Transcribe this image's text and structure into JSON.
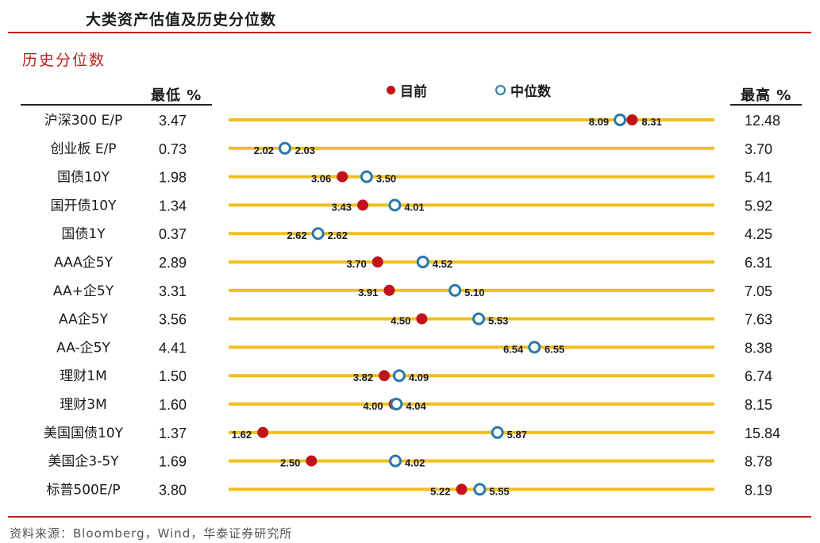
{
  "page": {
    "title": "大类资产估值及历史分位数",
    "section_title": "历史分位数",
    "source": "资料来源：Bloomberg，Wind，华泰证券研究所"
  },
  "colors": {
    "accent_red": "#c0201c",
    "bar": "#f2bf1c",
    "current_dot": "#c0141a",
    "median_ring": "#2a79a8"
  },
  "chart_data": {
    "type": "dot-range",
    "col_low_header": "最低 %",
    "col_high_header": "最高 %",
    "legend": {
      "current": "目前",
      "median": "中位数"
    },
    "rows": [
      {
        "label": "沪深300 E/P",
        "low": "3.47",
        "high": "12.48",
        "current": 8.31,
        "median": 8.09
      },
      {
        "label": "创业板 E/P",
        "low": "0.73",
        "high": "3.70",
        "current": 2.03,
        "median": 2.02
      },
      {
        "label": "国债10Y",
        "low": "1.98",
        "high": "5.41",
        "current": 3.06,
        "median": 3.5
      },
      {
        "label": "国开债10Y",
        "low": "1.34",
        "high": "5.92",
        "current": 3.43,
        "median": 4.01
      },
      {
        "label": "国债1Y",
        "low": "0.37",
        "high": "4.25",
        "current": 2.62,
        "median": 2.62
      },
      {
        "label": "AAA企5Y",
        "low": "2.89",
        "high": "6.31",
        "current": 3.7,
        "median": 4.52
      },
      {
        "label": "AA+企5Y",
        "low": "3.31",
        "high": "7.05",
        "current": 3.91,
        "median": 5.1
      },
      {
        "label": "AA企5Y",
        "low": "3.56",
        "high": "7.63",
        "current": 4.5,
        "median": 5.53
      },
      {
        "label": "AA-企5Y",
        "low": "4.41",
        "high": "8.38",
        "current": 6.55,
        "median": 6.54
      },
      {
        "label": "理财1M",
        "low": "1.50",
        "high": "6.74",
        "current": 3.82,
        "median": 4.09
      },
      {
        "label": "理财3M",
        "low": "1.60",
        "high": "8.15",
        "current": 4.0,
        "median": 4.04
      },
      {
        "label": "美国国债10Y",
        "low": "1.37",
        "high": "15.84",
        "current": 1.62,
        "median": 5.87
      },
      {
        "label": "美国企3-5Y",
        "low": "1.69",
        "high": "8.78",
        "current": 2.5,
        "median": 4.02
      },
      {
        "label": "标普500E/P",
        "low": "3.80",
        "high": "8.19",
        "current": 5.22,
        "median": 5.55
      }
    ]
  }
}
